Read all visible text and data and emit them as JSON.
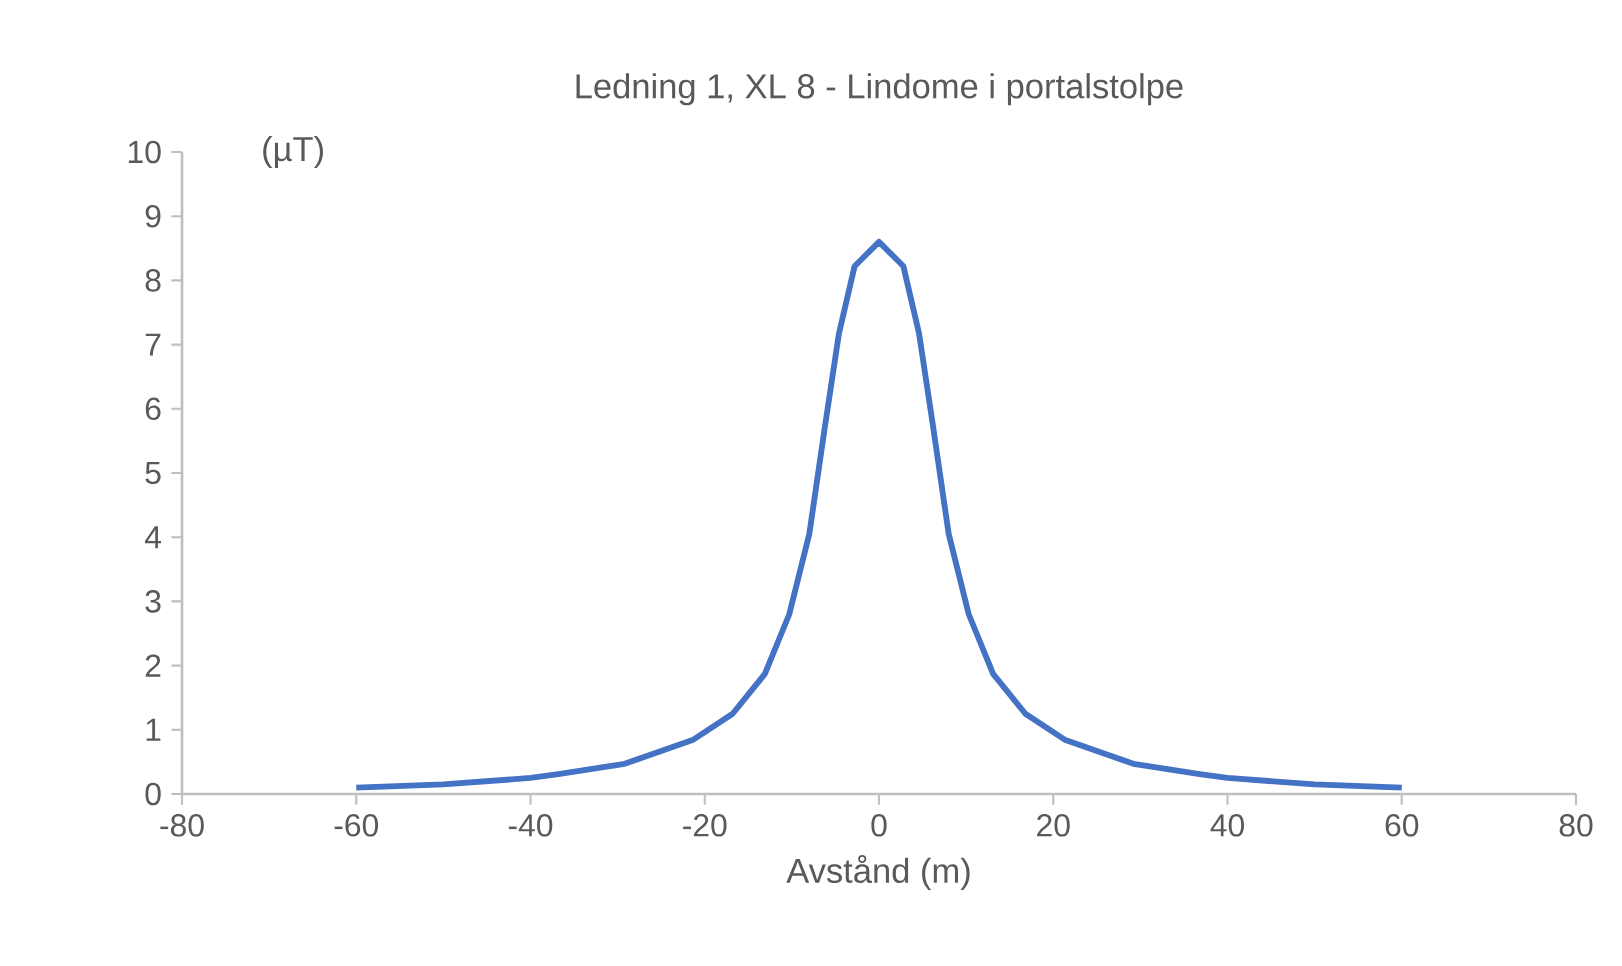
{
  "chart_data": {
    "type": "line",
    "title": "Ledning 1, XL 8 - Lindome i portalstolpe",
    "xlabel": "Avstånd (m)",
    "ylabel": "(µT)",
    "x": [
      -60,
      -50,
      -40,
      -36.8,
      -29.2,
      -21.4,
      -16.8,
      -13.1,
      -10.3,
      -8,
      -6.2,
      -4.6,
      -2.8,
      0,
      2.8,
      4.6,
      6.2,
      8,
      10.3,
      13.1,
      16.8,
      21.4,
      29.2,
      36.8,
      40,
      50,
      60
    ],
    "values": [
      0.1,
      0.15,
      0.25,
      0.31,
      0.47,
      0.84,
      1.25,
      1.87,
      2.8,
      4.05,
      5.73,
      7.17,
      8.22,
      8.6,
      8.22,
      7.17,
      5.73,
      4.05,
      2.8,
      1.87,
      1.25,
      0.84,
      0.47,
      0.31,
      0.25,
      0.15,
      0.1
    ],
    "color": "#4472c4",
    "xlim": [
      -80,
      80
    ],
    "xticks": [
      -80,
      -60,
      -40,
      -20,
      0,
      20,
      40,
      60,
      80
    ],
    "ylim": [
      0,
      10
    ],
    "yticks": [
      0,
      1,
      2,
      3,
      4,
      5,
      6,
      7,
      8,
      9,
      10
    ]
  }
}
